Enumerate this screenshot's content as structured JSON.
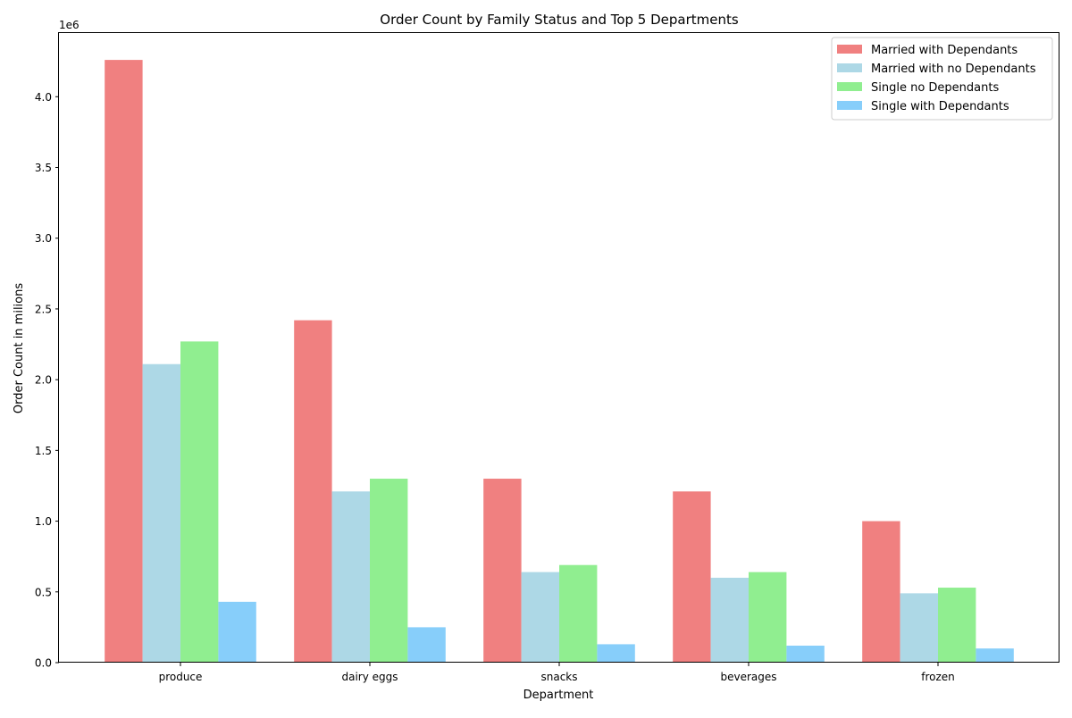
{
  "chart_data": {
    "type": "bar",
    "title": "Order Count by Family Status and Top 5 Departments",
    "xlabel": "Department",
    "ylabel": "Order Count in milions",
    "y_offset_text": "1e6",
    "ylim": [
      0,
      4.45
    ],
    "y_scale": 1000000,
    "yticks": [
      0,
      0.5,
      1.0,
      1.5,
      2.0,
      2.5,
      3.0,
      3.5,
      4.0
    ],
    "ytick_labels": [
      "0.0",
      "0.5",
      "1.0",
      "1.5",
      "2.0",
      "2.5",
      "3.0",
      "3.5",
      "4.0"
    ],
    "grid": false,
    "legend_position": "top-right",
    "categories": [
      "produce",
      "dairy eggs",
      "snacks",
      "beverages",
      "frozen"
    ],
    "series": [
      {
        "name": "Married with  Dependants",
        "color": "#f08080",
        "values": [
          4.26,
          2.42,
          1.3,
          1.21,
          1.0
        ]
      },
      {
        "name": "Married with no Dependants",
        "color": "#add8e6",
        "values": [
          2.11,
          1.21,
          0.64,
          0.6,
          0.49
        ]
      },
      {
        "name": "Single no Dependants",
        "color": "#90ee90",
        "values": [
          2.27,
          1.3,
          0.69,
          0.64,
          0.53
        ]
      },
      {
        "name": "Single with Dependants",
        "color": "#87cefa",
        "values": [
          0.43,
          0.25,
          0.13,
          0.12,
          0.1
        ]
      }
    ]
  }
}
